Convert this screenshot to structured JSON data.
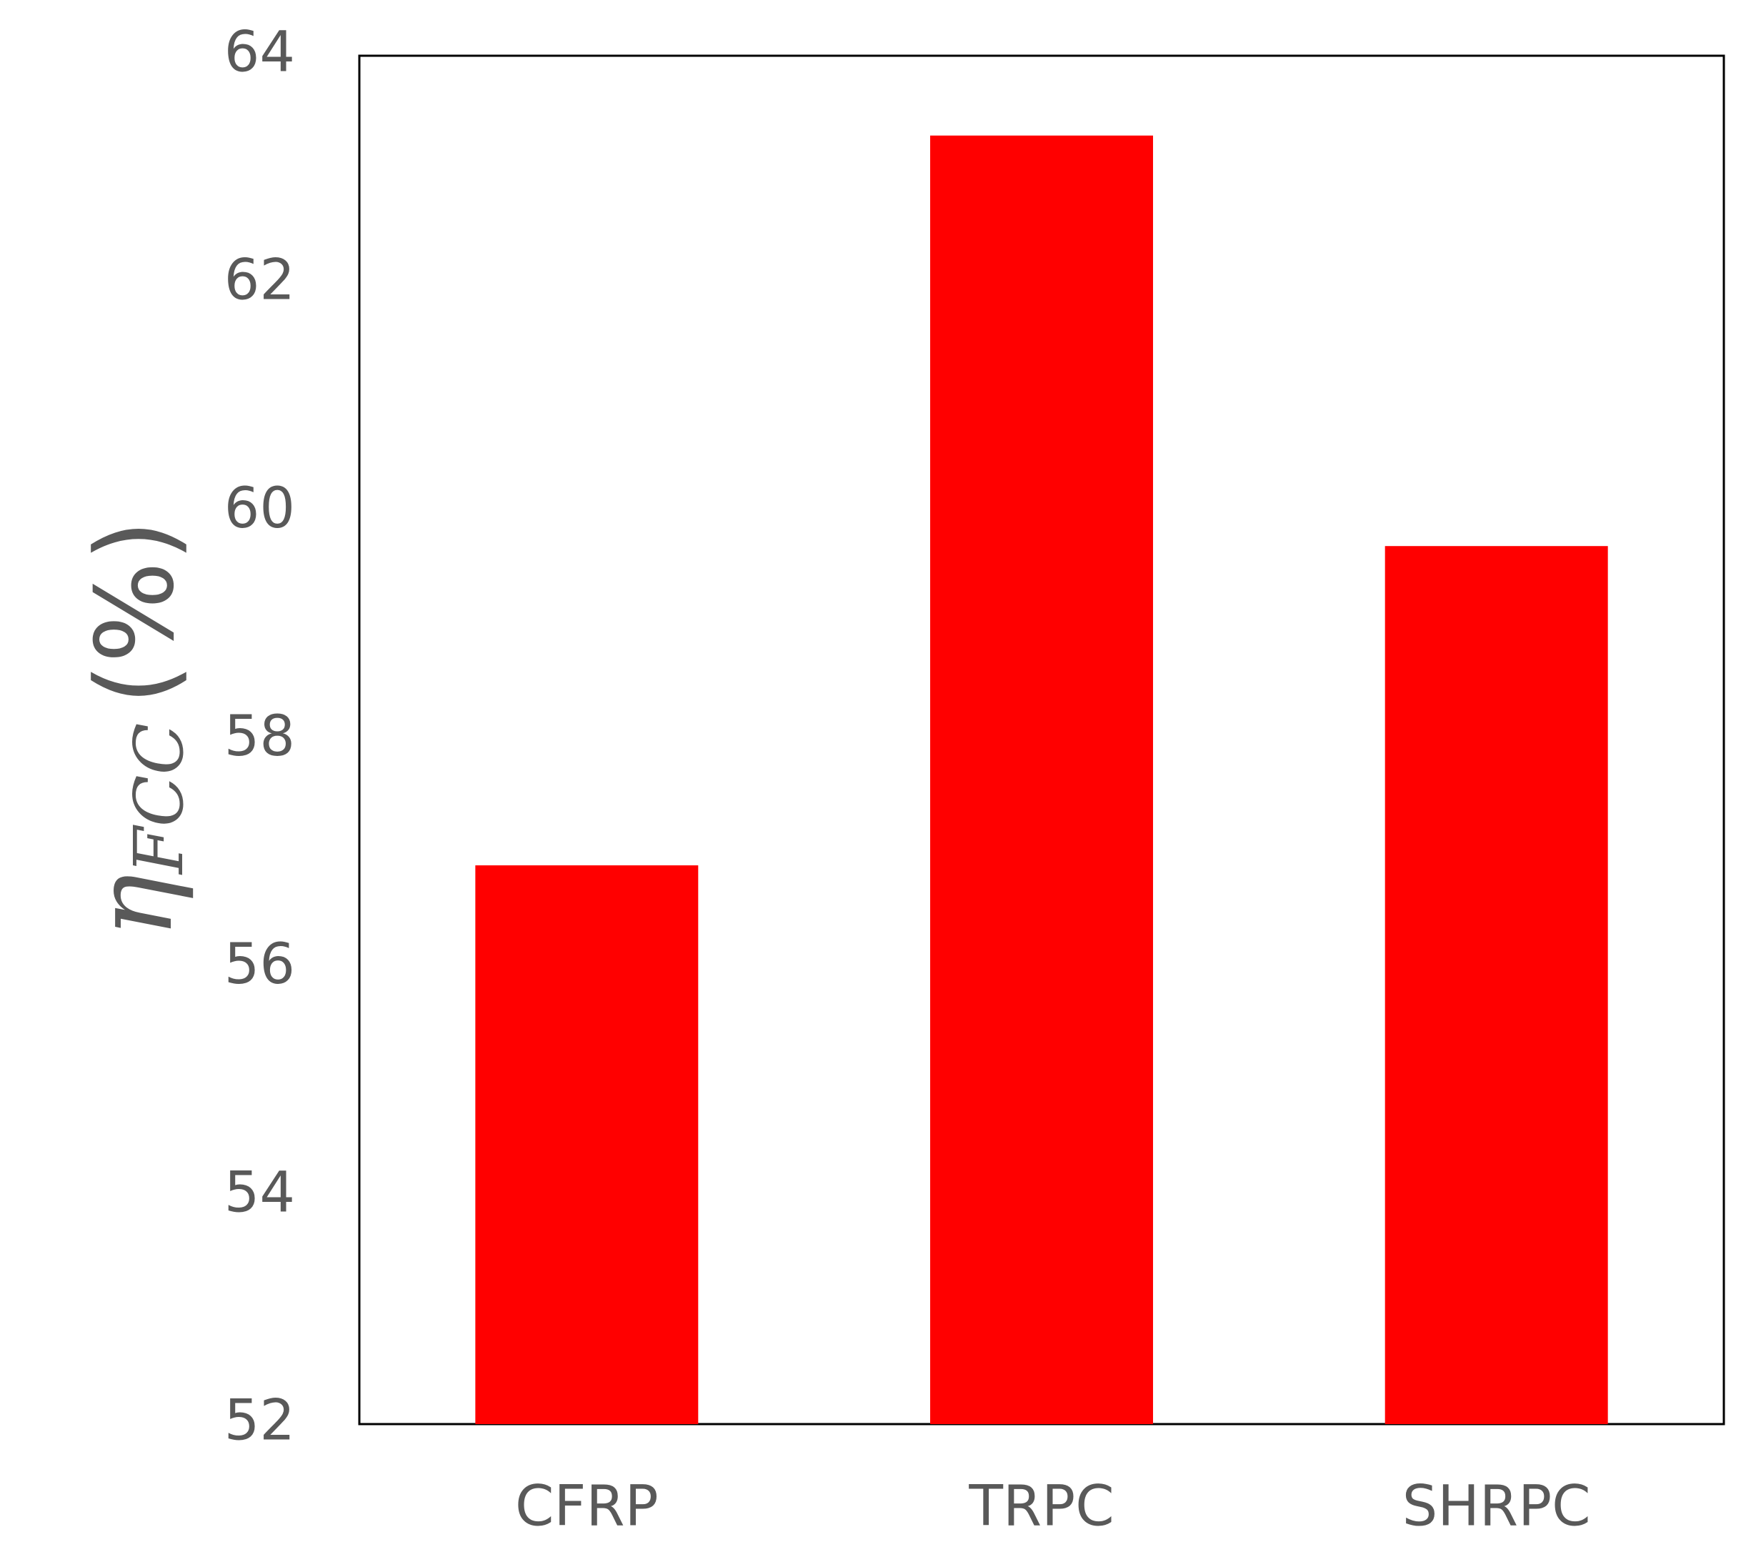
{
  "chart_data": {
    "type": "bar",
    "y_label": {
      "symbol": "η",
      "subscript": "FCC",
      "unit": "(%)"
    },
    "categories": [
      "CFRP",
      "TRPC",
      "SHRPC"
    ],
    "values": [
      56.9,
      63.3,
      59.7
    ],
    "color": "#ff0000",
    "ylim": [
      52,
      64
    ],
    "yticks": [
      52,
      54,
      56,
      58,
      60,
      62,
      64
    ],
    "grid": false
  }
}
